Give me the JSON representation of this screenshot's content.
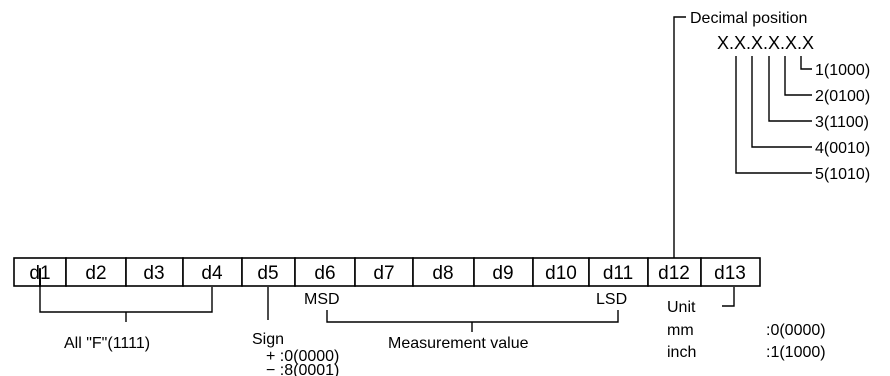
{
  "cells": [
    "d1",
    "d2",
    "d3",
    "d4",
    "d5",
    "d6",
    "d7",
    "d8",
    "d9",
    "d10",
    "d11",
    "d12",
    "d13"
  ],
  "decimal": {
    "title": "Decimal position",
    "pattern": "X.X.X.X.X.X",
    "codes": [
      "1(1000)",
      "2(0100)",
      "3(1100)",
      "4(0010)",
      "5(1010)"
    ]
  },
  "labels": {
    "msd": "MSD",
    "lsd": "LSD",
    "all_f": "All \"F\"(1111)",
    "sign": "Sign",
    "sign_plus": "+ :0(0000)",
    "sign_minus": "− :8(0001)",
    "measurement": "Measurement value",
    "unit": "Unit",
    "mm": "mm",
    "mm_code": ":0(0000)",
    "inch": "inch",
    "inch_code": ":1(1000)"
  }
}
